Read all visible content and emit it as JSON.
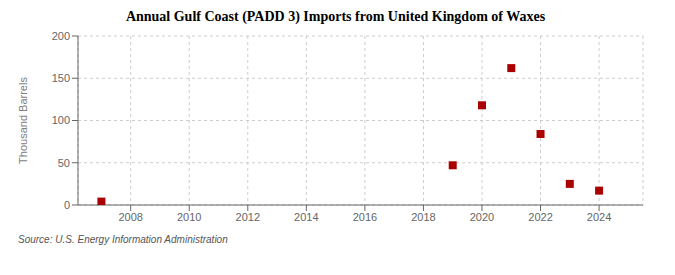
{
  "chart_data": {
    "type": "scatter",
    "title": "Annual Gulf Coast (PADD 3) Imports from United Kingdom of Waxes",
    "y_label": "Thousand Barrels",
    "annotations": [
      "Source: U.S. Energy Information Administration"
    ],
    "x": [
      2007,
      2019,
      2020,
      2021,
      2022,
      2023,
      2024
    ],
    "values": [
      4,
      47,
      118,
      162,
      84,
      25,
      17
    ],
    "color": "#aa0000",
    "marker": "square",
    "xlim": [
      2006.2,
      2025.5
    ],
    "ylim": [
      0,
      200
    ],
    "xticks": [
      2008,
      2010,
      2012,
      2014,
      2016,
      2018,
      2020,
      2022,
      2024
    ],
    "yticks": [
      0,
      50,
      100,
      150,
      200
    ],
    "grid": true
  }
}
